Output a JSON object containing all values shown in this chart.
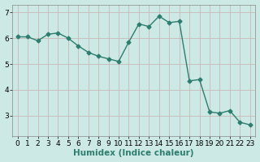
{
  "x": [
    0,
    1,
    2,
    3,
    4,
    5,
    6,
    7,
    8,
    9,
    10,
    11,
    12,
    13,
    14,
    15,
    16,
    17,
    18,
    19,
    20,
    21,
    22,
    23
  ],
  "y": [
    6.05,
    6.05,
    5.9,
    6.15,
    6.2,
    6.0,
    5.7,
    5.45,
    5.3,
    5.2,
    5.1,
    5.85,
    6.55,
    6.45,
    6.85,
    6.6,
    6.65,
    4.35,
    4.4,
    3.15,
    3.1,
    3.2,
    2.75,
    2.65
  ],
  "line_color": "#2e7d6e",
  "marker": "D",
  "marker_size": 2.5,
  "line_width": 1.0,
  "bg_color": "#cce9e5",
  "grid_color": "#c8b8b8",
  "xlabel": "Humidex (Indice chaleur)",
  "xlabel_fontsize": 7.5,
  "tick_fontsize": 6.5,
  "ylim": [
    2.2,
    7.3
  ],
  "yticks": [
    3,
    4,
    5,
    6,
    7
  ],
  "xlim": [
    -0.5,
    23.5
  ],
  "xticks": [
    0,
    1,
    2,
    3,
    4,
    5,
    6,
    7,
    8,
    9,
    10,
    11,
    12,
    13,
    14,
    15,
    16,
    17,
    18,
    19,
    20,
    21,
    22,
    23
  ]
}
